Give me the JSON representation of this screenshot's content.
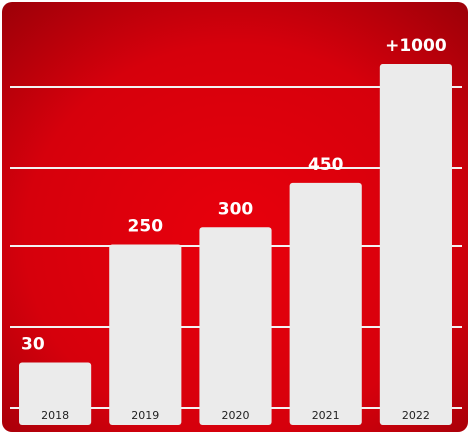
{
  "chart_data": {
    "type": "bar",
    "categories": [
      "2018",
      "2019",
      "2020",
      "2021",
      "2022"
    ],
    "values": [
      30,
      250,
      300,
      450,
      1000
    ],
    "value_labels": [
      "30",
      "250",
      "300",
      "450",
      "+1000"
    ],
    "color": "#ebebeb",
    "ylim": [
      0,
      1000
    ],
    "yscale": "sqrt"
  }
}
